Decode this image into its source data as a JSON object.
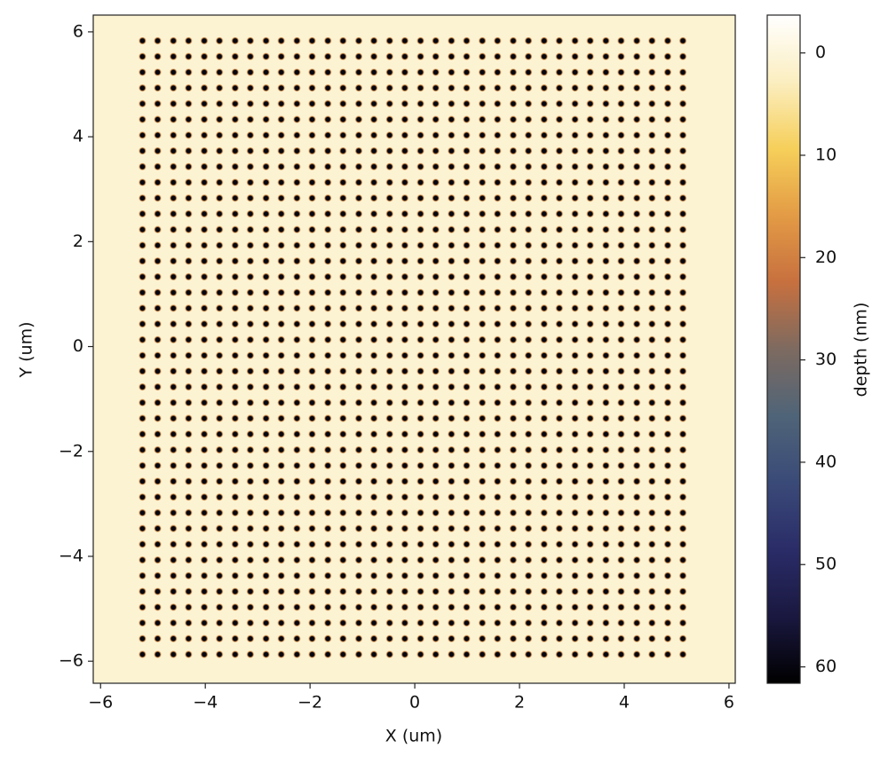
{
  "chart_data": {
    "type": "heatmap",
    "xlabel": "X (um)",
    "ylabel": "Y (um)",
    "colorbar_label": "depth (nm)",
    "xlim": [
      -6.14,
      6.12
    ],
    "ylim": [
      -6.42,
      6.32
    ],
    "xticks": [
      {
        "value": -6,
        "label": "−6"
      },
      {
        "value": -4,
        "label": "−4"
      },
      {
        "value": -2,
        "label": "−2"
      },
      0,
      2,
      4,
      6
    ],
    "yticks": [
      {
        "value": -6,
        "label": "−6"
      },
      {
        "value": -4,
        "label": "−4"
      },
      {
        "value": -2,
        "label": "−2"
      },
      0,
      2,
      4,
      6
    ],
    "clim": [
      -3.7,
      61.6
    ],
    "cticks": [
      0,
      10,
      20,
      30,
      40,
      50,
      60
    ],
    "colormap": [
      "#ffffff",
      "#fbeec0",
      "#f6cf5a",
      "#e39b45",
      "#c7703f",
      "#7d6a60",
      "#4f6478",
      "#3a4a78",
      "#2a2c68",
      "#1a1840",
      "#000000"
    ],
    "background_depth": 1,
    "depth": 60,
    "x": [
      -5.2,
      -4.91,
      -4.61,
      -4.32,
      -4.02,
      -3.73,
      -3.43,
      -3.14,
      -2.84,
      -2.55,
      -2.25,
      -1.96,
      -1.66,
      -1.37,
      -1.07,
      -0.78,
      -0.48,
      -0.19,
      0.11,
      0.4,
      0.7,
      0.99,
      1.29,
      1.58,
      1.88,
      2.17,
      2.47,
      2.76,
      3.06,
      3.35,
      3.65,
      3.94,
      4.24,
      4.53,
      4.83,
      5.12
    ],
    "y": [
      5.83,
      5.53,
      5.23,
      4.93,
      4.63,
      4.33,
      4.03,
      3.73,
      3.43,
      3.13,
      2.83,
      2.53,
      2.23,
      1.93,
      1.63,
      1.33,
      1.03,
      0.73,
      0.43,
      0.13,
      -0.17,
      -0.47,
      -0.77,
      -1.07,
      -1.37,
      -1.67,
      -1.97,
      -2.27,
      -2.57,
      -2.87,
      -3.17,
      -3.47,
      -3.77,
      -4.07,
      -4.37,
      -4.67,
      -4.97,
      -5.27,
      -5.57,
      -5.87
    ]
  }
}
